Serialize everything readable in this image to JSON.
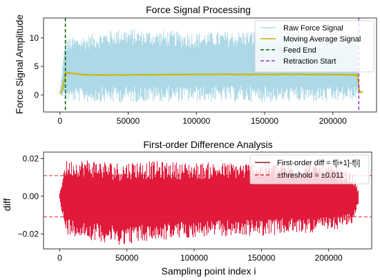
{
  "chart_data": [
    {
      "type": "line",
      "title": "Force Signal Processing",
      "xlabel": "",
      "ylabel": "Force Signal Amplitude",
      "xlim": [
        -12000,
        232000
      ],
      "ylim": [
        -3,
        13.5
      ],
      "x_ticks": [
        0,
        50000,
        100000,
        150000,
        200000
      ],
      "x_tick_labels": [
        "0",
        "50000",
        "100000",
        "150000",
        "200000"
      ],
      "y_ticks": [
        0,
        5,
        10
      ],
      "y_tick_labels": [
        "0",
        "5",
        "10"
      ],
      "grid": false,
      "legend_position": "top-right",
      "series": [
        {
          "name": "Raw Force Signal",
          "kind": "noise-band",
          "color": "#add8e6",
          "x": [
            0,
            4000,
            20000,
            45000,
            60000,
            100000,
            150000,
            200000,
            218000,
            219000,
            222000
          ],
          "y_low": [
            0.2,
            -1.2,
            -1.3,
            -1.4,
            -1.3,
            -1.2,
            -1.3,
            -1.3,
            -1.0,
            0.3,
            0.4
          ],
          "y_high": [
            0.6,
            10.0,
            10.6,
            11.8,
            11.5,
            11.0,
            11.4,
            10.8,
            10.5,
            0.6,
            0.6
          ]
        },
        {
          "name": "Moving Average Signal",
          "kind": "line",
          "color": "#ccb400",
          "x": [
            0,
            2000,
            4000,
            20000,
            50000,
            100000,
            150000,
            200000,
            218000,
            219500,
            222000
          ],
          "y": [
            0.3,
            0.9,
            3.9,
            3.5,
            3.5,
            3.6,
            3.6,
            3.6,
            3.5,
            0.6,
            0.4
          ]
        }
      ],
      "vlines": [
        {
          "name": "Feed End",
          "x": 4000,
          "color": "#006400"
        },
        {
          "name": "Retraction Start",
          "x": 219000,
          "color": "#9932cc"
        }
      ]
    },
    {
      "type": "line",
      "title": "First-order Difference Analysis",
      "xlabel": "Sampling point index i",
      "ylabel": "diff",
      "xlim": [
        -12000,
        232000
      ],
      "ylim": [
        -0.028,
        0.0235
      ],
      "x_ticks": [
        0,
        50000,
        100000,
        150000,
        200000
      ],
      "x_tick_labels": [
        "0",
        "50000",
        "100000",
        "150000",
        "200000"
      ],
      "y_ticks": [
        -0.02,
        0,
        0.02
      ],
      "y_tick_labels": [
        "−0.02",
        "0.00",
        "0.02"
      ],
      "grid": false,
      "legend_position": "top-right",
      "series": [
        {
          "name": "First-order diff = f[i+1]-f[i]",
          "kind": "noise-band",
          "color": "#e11a3c",
          "x": [
            0,
            4000,
            20000,
            45000,
            55000,
            100000,
            150000,
            200000,
            218000,
            222000
          ],
          "y_low": [
            -0.002,
            -0.02,
            -0.023,
            -0.026,
            -0.025,
            -0.022,
            -0.021,
            -0.019,
            -0.015,
            -0.004
          ],
          "y_high": [
            0.002,
            0.019,
            0.02,
            0.018,
            0.019,
            0.018,
            0.018,
            0.017,
            0.012,
            0.003
          ]
        }
      ],
      "hlines": [
        {
          "name": "±threshold = ±0.011",
          "y": 0.011,
          "color": "#d62728"
        },
        {
          "name": "",
          "y": -0.011,
          "color": "#d62728"
        }
      ]
    }
  ]
}
